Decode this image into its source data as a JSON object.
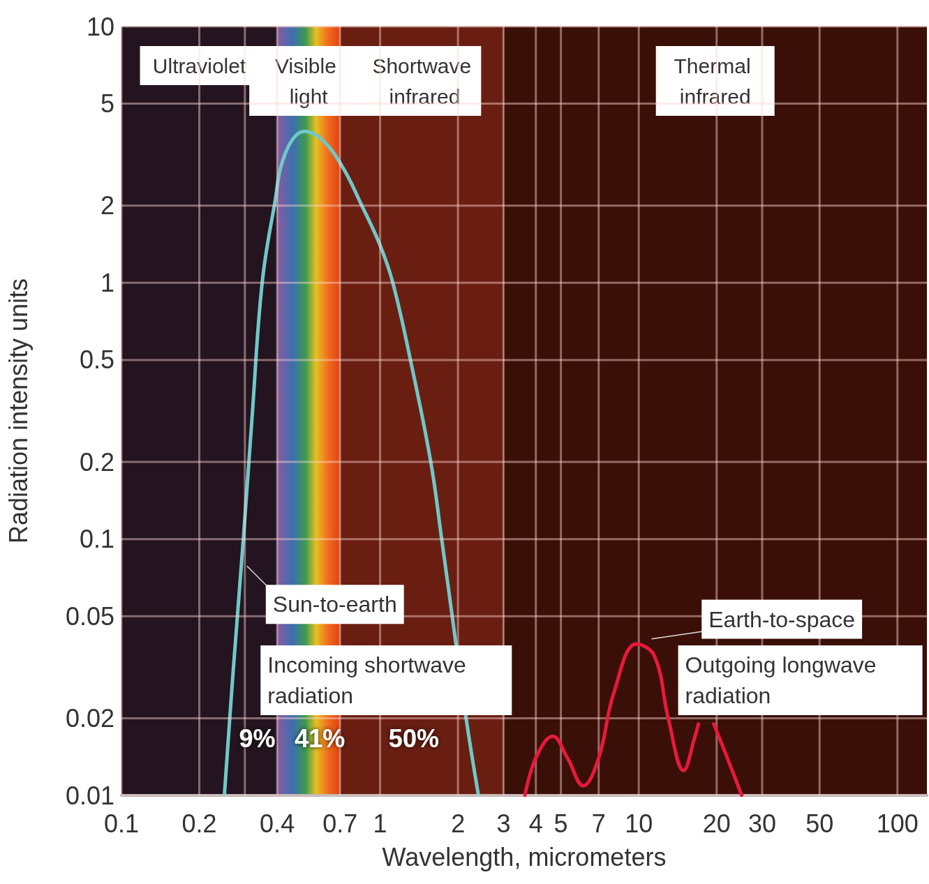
{
  "chart_data": {
    "type": "line",
    "xlabel": "Wavelength, micrometers",
    "ylabel": "Radiation intensity units",
    "log": "xy",
    "grid": true,
    "marker": "none",
    "line_style": "solid",
    "xlim": [
      0.1,
      130
    ],
    "xticks": [
      0.1,
      0.2,
      {
        "value": 0.3,
        "label": null
      },
      0.4,
      0.7,
      1,
      2,
      3,
      4,
      5,
      7,
      10,
      20,
      30,
      50,
      100
    ],
    "ylim": [
      0.01,
      10
    ],
    "yticks": [
      0.01,
      0.02,
      0.05,
      0.1,
      0.2,
      0.5,
      1,
      2,
      5,
      10
    ],
    "bands": [
      {
        "axis": "x",
        "from": 0.1,
        "to": 0.4,
        "label": "Ultraviolet",
        "color": "#231420"
      },
      {
        "axis": "x",
        "from": 0.4,
        "to": 0.7,
        "label": "Visible light"
      },
      {
        "axis": "x",
        "from": 0.7,
        "to": 3,
        "label": "Shortwave infrared",
        "color": "#6a1e12"
      },
      {
        "axis": "x",
        "from": 3,
        "to": 130,
        "label": "Thermal infrared",
        "color": "#3a0f08"
      }
    ],
    "series": [
      {
        "color": "#70c8c8",
        "x": [
          0.25,
          0.27,
          0.296,
          0.32,
          0.35,
          0.39,
          0.43,
          0.51,
          0.6,
          0.72,
          0.85,
          1.0,
          1.12,
          1.31,
          1.57,
          1.73,
          1.9,
          2.15,
          2.4
        ],
        "values": [
          0.01,
          0.03,
          0.1,
          0.3,
          1,
          2,
          3.2,
          3.9,
          3.6,
          2.8,
          2,
          1.4,
          1,
          0.5,
          0.2,
          0.1,
          0.05,
          0.02,
          0.01
        ]
      },
      {
        "color": "#e8193c",
        "x": [
          3.63,
          4.0,
          4.65,
          5.3,
          6.1,
          7,
          8,
          9.8,
          11.5,
          13,
          14.9,
          16.5,
          17,
          18.5,
          19.5,
          22,
          25
        ],
        "values": [
          0.01,
          0.014,
          0.017,
          0.014,
          0.0109,
          0.014,
          0.025,
          0.039,
          0.035,
          0.02,
          0.0125,
          0.017,
          0.019,
          null,
          0.019,
          0.014,
          0.01
        ]
      }
    ],
    "annotations": [
      {
        "text": "Sun-to-earth",
        "x": 0.3,
        "y": 0.08
      },
      "Earth-to-space",
      "Incoming shortwave radiation",
      "Outgoing longwave radiation",
      "9%",
      "41%",
      "50%"
    ]
  }
}
